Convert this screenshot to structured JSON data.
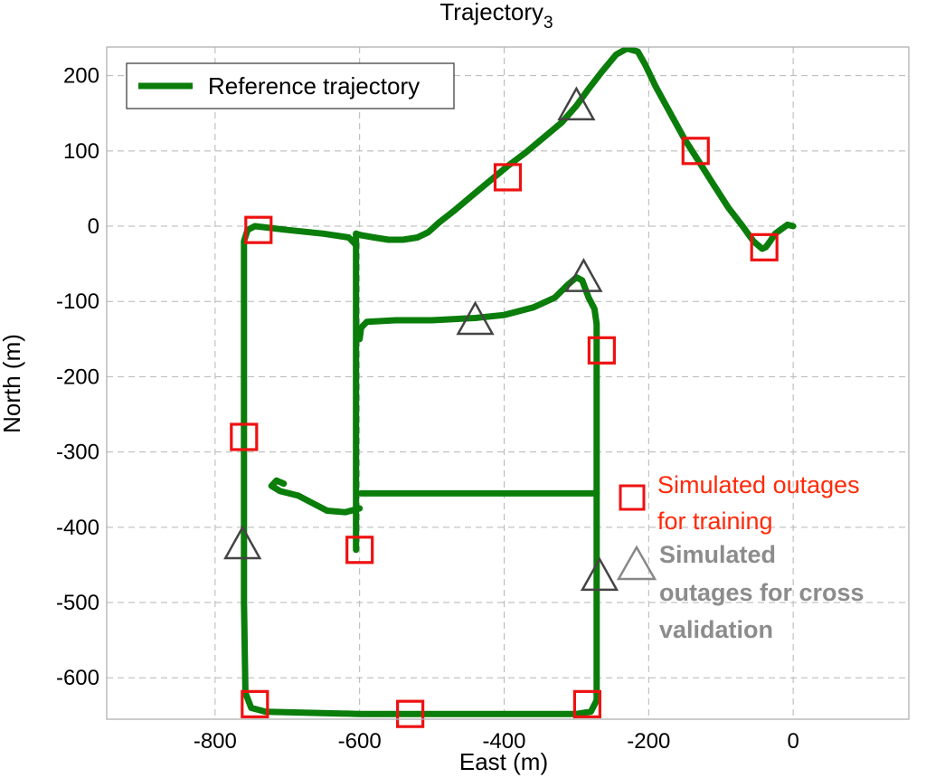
{
  "chart_data": {
    "type": "line",
    "title": "Trajectory",
    "title_subscript": "3",
    "xlabel": "East (m)",
    "ylabel": "North (m)",
    "xlim": [
      -950,
      160
    ],
    "ylim": [
      -655,
      238
    ],
    "xticks": [
      -800,
      -600,
      -400,
      -200,
      0
    ],
    "yticks": [
      200,
      100,
      0,
      -100,
      -200,
      -300,
      -400,
      -500,
      -600
    ],
    "grid": true,
    "legend_position": "top-left",
    "colors": {
      "trajectory": "#0a7d0a",
      "training": "#ee1111",
      "validation": "#444444"
    },
    "series": [
      {
        "name": "Reference trajectory",
        "segments": [
          [
            [
              0,
              0
            ],
            [
              -8,
              2
            ],
            [
              -15,
              -3
            ],
            [
              -25,
              -10
            ],
            [
              -32,
              -20
            ],
            [
              -38,
              -28
            ],
            [
              -43,
              -30
            ],
            [
              -55,
              -20
            ],
            [
              -70,
              0
            ],
            [
              -90,
              25
            ],
            [
              -110,
              55
            ],
            [
              -130,
              85
            ],
            [
              -150,
              115
            ],
            [
              -170,
              150
            ],
            [
              -190,
              185
            ],
            [
              -205,
              215
            ],
            [
              -215,
              232
            ],
            [
              -230,
              236
            ],
            [
              -245,
              228
            ],
            [
              -265,
              205
            ],
            [
              -285,
              180
            ],
            [
              -300,
              160
            ],
            [
              -320,
              138
            ],
            [
              -345,
              118
            ],
            [
              -370,
              98
            ],
            [
              -395,
              80
            ],
            [
              -420,
              60
            ],
            [
              -445,
              40
            ],
            [
              -470,
              20
            ],
            [
              -490,
              5
            ],
            [
              -505,
              -8
            ],
            [
              -520,
              -15
            ],
            [
              -540,
              -18
            ],
            [
              -560,
              -18
            ],
            [
              -580,
              -15
            ],
            [
              -598,
              -12
            ],
            [
              -605,
              -10
            ]
          ],
          [
            [
              -605,
              -10
            ],
            [
              -605,
              -430
            ]
          ],
          [
            [
              -605,
              -25
            ],
            [
              -615,
              -15
            ],
            [
              -650,
              -10
            ],
            [
              -700,
              -5
            ],
            [
              -745,
              0
            ],
            [
              -755,
              -5
            ],
            [
              -760,
              -20
            ],
            [
              -760,
              -100
            ],
            [
              -760,
              -300
            ],
            [
              -760,
              -500
            ],
            [
              -758,
              -620
            ],
            [
              -750,
              -640
            ],
            [
              -730,
              -645
            ],
            [
              -600,
              -648
            ],
            [
              -500,
              -648
            ],
            [
              -400,
              -648
            ],
            [
              -300,
              -648
            ],
            [
              -280,
              -645
            ],
            [
              -272,
              -630
            ],
            [
              -272,
              -500
            ],
            [
              -272,
              -350
            ],
            [
              -272,
              -200
            ],
            [
              -272,
              -130
            ],
            [
              -275,
              -110
            ],
            [
              -283,
              -95
            ],
            [
              -292,
              -72
            ],
            [
              -300,
              -68
            ],
            [
              -312,
              -78
            ],
            [
              -330,
              -95
            ],
            [
              -360,
              -108
            ],
            [
              -400,
              -118
            ],
            [
              -440,
              -122
            ],
            [
              -500,
              -125
            ],
            [
              -550,
              -125
            ],
            [
              -590,
              -127
            ],
            [
              -598,
              -135
            ],
            [
              -600,
              -150
            ]
          ],
          [
            [
              -598,
              -355
            ],
            [
              -550,
              -355
            ],
            [
              -450,
              -355
            ],
            [
              -350,
              -355
            ],
            [
              -272,
              -355
            ]
          ],
          [
            [
              -600,
              -375
            ],
            [
              -620,
              -380
            ],
            [
              -645,
              -378
            ],
            [
              -665,
              -368
            ],
            [
              -685,
              -358
            ],
            [
              -710,
              -352
            ],
            [
              -722,
              -345
            ],
            [
              -715,
              -338
            ],
            [
              -705,
              -342
            ]
          ]
        ]
      }
    ],
    "training_outages": [
      [
        -740,
        -5
      ],
      [
        -760,
        -280
      ],
      [
        -745,
        -635
      ],
      [
        -530,
        -648
      ],
      [
        -285,
        -635
      ],
      [
        -600,
        -430
      ],
      [
        -265,
        -165
      ],
      [
        -395,
        65
      ],
      [
        -135,
        100
      ],
      [
        -40,
        -28
      ]
    ],
    "validation_outages": [
      [
        -300,
        160
      ],
      [
        -290,
        -68
      ],
      [
        -440,
        -125
      ],
      [
        -762,
        -423
      ],
      [
        -268,
        -465
      ]
    ],
    "legend": [
      "Reference trajectory"
    ],
    "annotations": {
      "training": [
        "Simulated outages",
        "for training"
      ],
      "validation": [
        "Simulated",
        "outages for cross",
        "validation"
      ]
    }
  }
}
